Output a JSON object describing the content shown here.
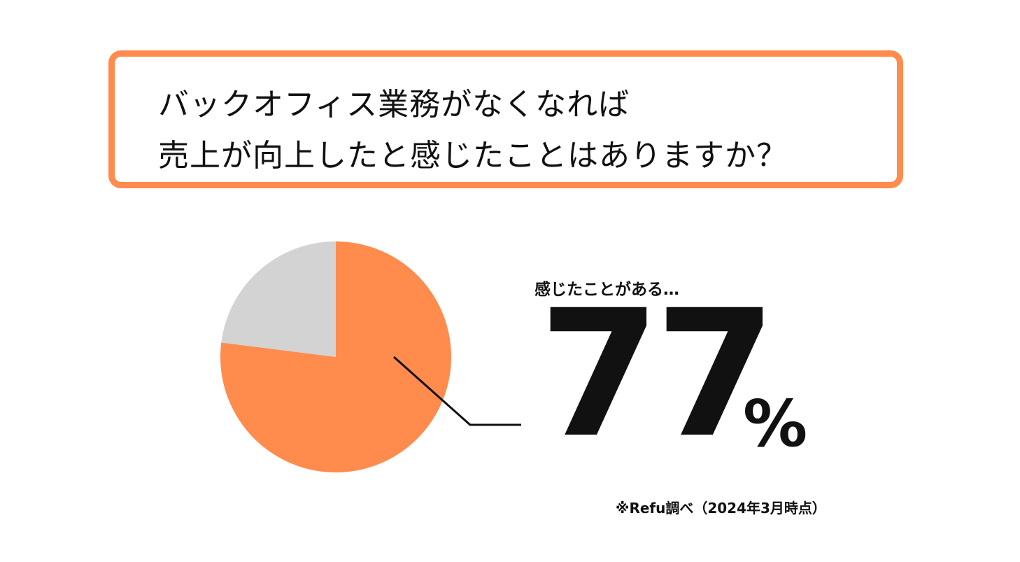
{
  "question": {
    "line1": "バックオフィス業務がなくなれば",
    "line2": "売上が向上したと感じたことはありますか？"
  },
  "result": {
    "label": "感じたことがある…",
    "value": "77",
    "unit": "%"
  },
  "source_note": "※Refu調べ（2024年3月時点）",
  "colors": {
    "accent": "#ff8c4d",
    "other": "#d3d3d3",
    "text": "#111111"
  },
  "chart_data": {
    "type": "pie",
    "categories": [
      "感じたことがある…",
      ""
    ],
    "values": [
      77,
      23
    ],
    "colors": [
      "#ff8c4d",
      "#d3d3d3"
    ],
    "legend": "none",
    "grid": false
  }
}
